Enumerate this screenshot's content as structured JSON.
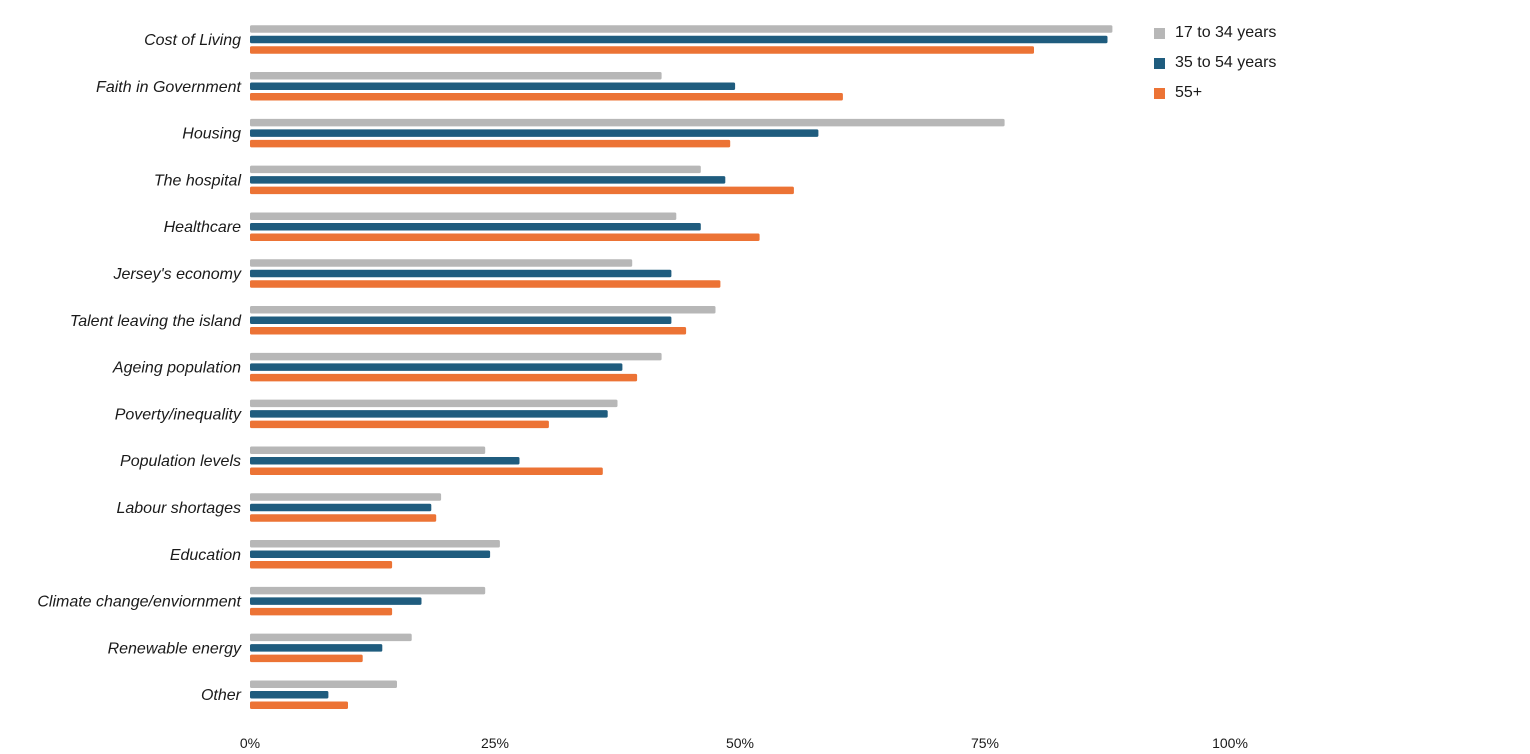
{
  "chart_data": {
    "type": "bar",
    "orientation": "horizontal",
    "categories": [
      "Cost of Living",
      "Faith in Government",
      "Housing",
      "The hospital",
      "Healthcare",
      "Jersey's economy",
      "Talent leaving the island",
      "Ageing population",
      "Poverty/inequality",
      "Population levels",
      "Labour shortages",
      "Education",
      "Climate change/enviornment",
      "Renewable energy",
      "Other"
    ],
    "series": [
      {
        "name": "17 to 34 years",
        "color": "#b7b7b7",
        "values": [
          88,
          42,
          77,
          46,
          43.5,
          39,
          47.5,
          42,
          37.5,
          24,
          19.5,
          25.5,
          24,
          16.5,
          15
        ]
      },
      {
        "name": "35 to 54 years",
        "color": "#1f5c7e",
        "values": [
          87.5,
          49.5,
          58,
          48.5,
          46,
          43,
          43,
          38,
          36.5,
          27.5,
          18.5,
          24.5,
          17.5,
          13.5,
          8
        ]
      },
      {
        "name": "55+",
        "color": "#ec7335",
        "values": [
          80,
          60.5,
          49,
          55.5,
          52,
          48,
          44.5,
          39.5,
          30.5,
          36,
          19,
          14.5,
          14.5,
          11.5,
          10
        ]
      }
    ],
    "xlim": [
      0,
      100
    ],
    "xticks": [
      "0%",
      "25%",
      "50%",
      "75%",
      "100%"
    ],
    "xtick_values": [
      0,
      25,
      50,
      75,
      100
    ],
    "grid": false,
    "legend_position": "top-right",
    "title": "",
    "xlabel": "",
    "ylabel": ""
  }
}
